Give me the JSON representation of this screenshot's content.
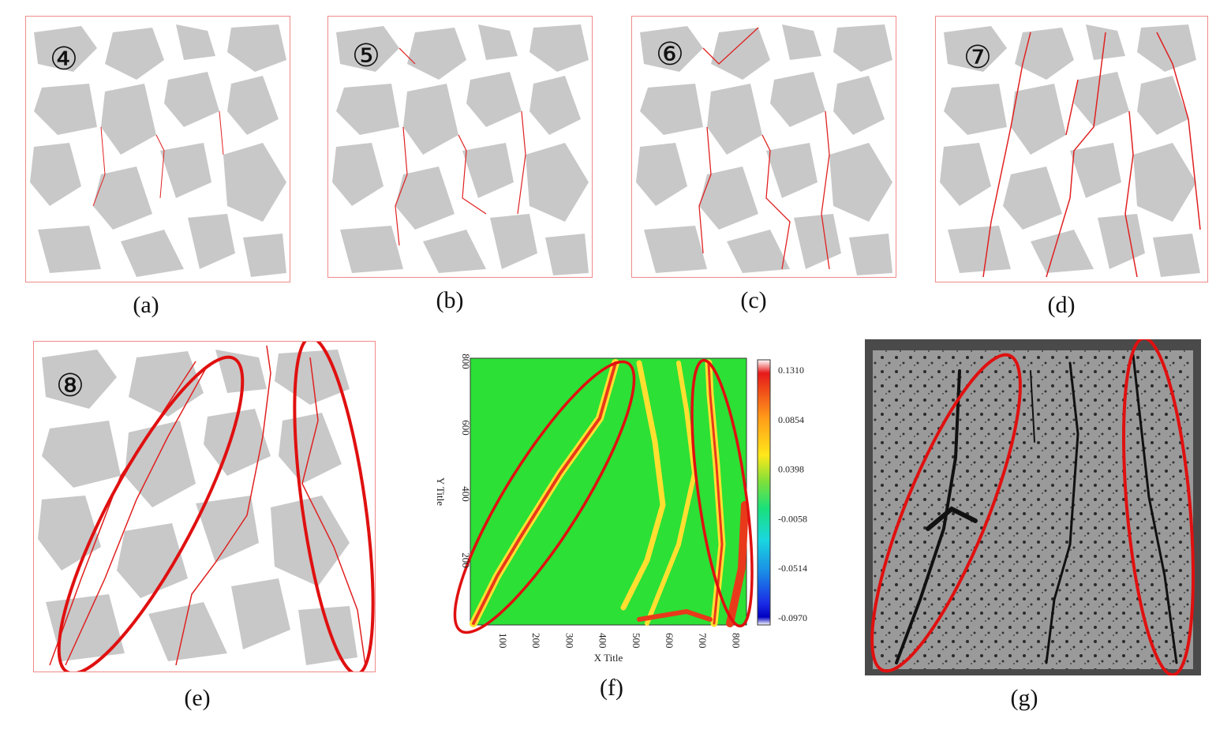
{
  "panels": [
    {
      "caption": "(a)",
      "marker": "④"
    },
    {
      "caption": "(b)",
      "marker": "⑤"
    },
    {
      "caption": "(c)",
      "marker": "⑥"
    },
    {
      "caption": "(d)",
      "marker": "⑦"
    },
    {
      "caption": "(e)",
      "marker": "⑧"
    },
    {
      "caption": "(f)"
    },
    {
      "caption": "(g)"
    }
  ],
  "contour": {
    "xlabel": "X Title",
    "ylabel": "Y Title",
    "x_ticks": [
      "100",
      "200",
      "300",
      "400",
      "500",
      "600",
      "700",
      "800"
    ],
    "y_ticks": [
      "800",
      "600",
      "400",
      "200"
    ],
    "colorbar_ticks": [
      "0.1310",
      "0.0854",
      "0.0398",
      "-0.0058",
      "-0.0514",
      "-0.0970"
    ]
  },
  "colors": {
    "aggregate": "#c8c8c8",
    "crack": "#e02020",
    "highlight_ellipse": "#e01010",
    "frame": "#f08a8a"
  }
}
